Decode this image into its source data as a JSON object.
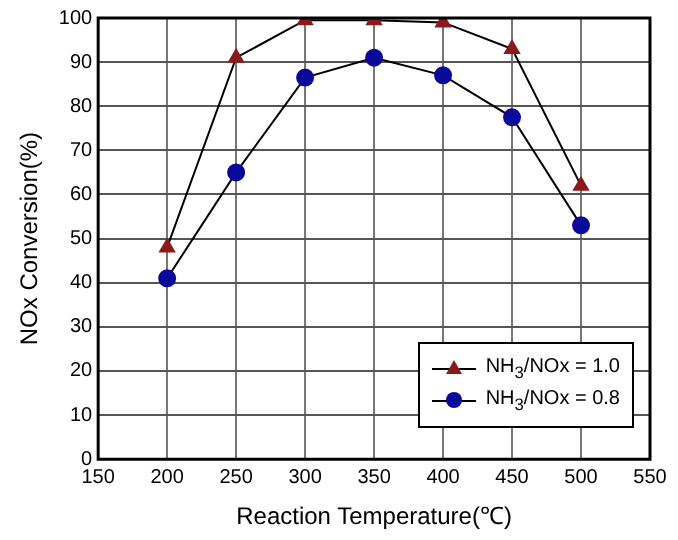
{
  "chart_data": {
    "type": "line",
    "xlabel": "Reaction Temperature(℃)",
    "ylabel": "NOx Conversion(%)",
    "x": [
      200,
      250,
      300,
      350,
      400,
      450,
      500
    ],
    "series": [
      {
        "name": "NH$_{3}$/NOx = 1.0",
        "color": "#8b1a1a",
        "marker": "triangle",
        "values": [
          48,
          91,
          99.5,
          99.5,
          99,
          93,
          62
        ]
      },
      {
        "name": "NH$_{3}$/NOx = 0.8",
        "color": "#0a0a9a",
        "marker": "circle",
        "values": [
          41,
          65,
          86.5,
          91,
          87,
          77.5,
          53
        ]
      }
    ],
    "xlim": [
      150,
      550
    ],
    "xticks": [
      150,
      200,
      250,
      300,
      350,
      400,
      450,
      500,
      550
    ],
    "ylim": [
      0,
      100
    ],
    "yticks": [
      0,
      10,
      20,
      30,
      40,
      50,
      60,
      70,
      80,
      90,
      100
    ],
    "grid": true,
    "legend": "bottom right"
  }
}
